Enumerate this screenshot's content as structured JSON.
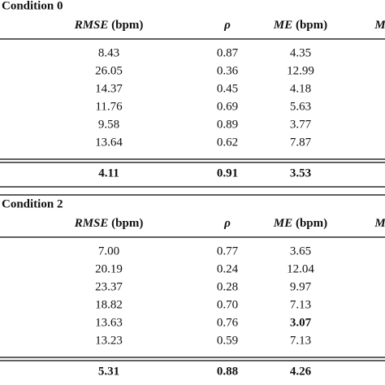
{
  "sections": [
    {
      "title": "Condition 0",
      "headers": [
        {
          "symbol": "RMSE",
          "unit": "(bpm)"
        },
        {
          "symbol": "ρ"
        },
        {
          "symbol": "ME",
          "unit": "(bpm)"
        },
        {
          "symbol": "M"
        }
      ],
      "rows": [
        [
          "8.43",
          "0.87",
          "4.35"
        ],
        [
          "26.05",
          "0.36",
          "12.99"
        ],
        [
          "14.37",
          "0.45",
          "4.18"
        ],
        [
          "11.76",
          "0.69",
          "5.63"
        ],
        [
          "9.58",
          "0.89",
          "3.77"
        ],
        [
          "13.64",
          "0.62",
          "7.87"
        ]
      ],
      "summary": [
        "4.11",
        "0.91",
        "3.53"
      ]
    },
    {
      "title": "Condition 2",
      "headers": [
        {
          "symbol": "RMSE",
          "unit": "(bpm)"
        },
        {
          "symbol": "ρ"
        },
        {
          "symbol": "ME",
          "unit": "(bpm)"
        },
        {
          "symbol": "M"
        }
      ],
      "rows": [
        [
          "7.00",
          "0.77",
          "3.65"
        ],
        [
          "20.19",
          "0.24",
          "12.04"
        ],
        [
          "23.37",
          "0.28",
          "9.97"
        ],
        [
          "18.82",
          "0.70",
          "7.13"
        ],
        [
          "13.63",
          "0.76",
          {
            "text": "3.07",
            "bold": true
          }
        ],
        [
          "13.23",
          "0.59",
          "7.13"
        ]
      ],
      "summary": [
        "5.31",
        "0.88",
        "4.26"
      ]
    }
  ]
}
